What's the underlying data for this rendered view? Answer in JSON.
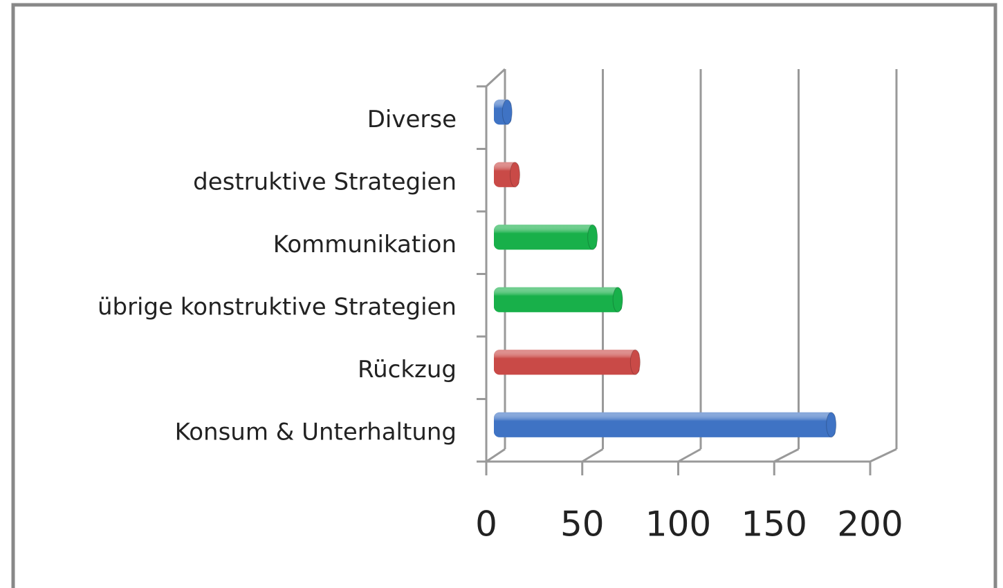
{
  "chart_data": {
    "type": "bar",
    "orientation": "horizontal",
    "3d": true,
    "categories": [
      "Konsum & Unterhaltung",
      "Rückzug",
      "übrige konstruktive Strategien",
      "Kommunikation",
      "destruktive Strategien",
      "Diverse"
    ],
    "values": [
      176,
      75,
      66,
      53,
      13,
      9
    ],
    "colors": [
      "#3f73c4",
      "#c94a47",
      "#18b04a",
      "#18b04a",
      "#c94a47",
      "#3f73c4"
    ],
    "xlim": [
      0,
      200
    ],
    "xticks": [
      0,
      50,
      100,
      150,
      200
    ],
    "grid": true
  }
}
